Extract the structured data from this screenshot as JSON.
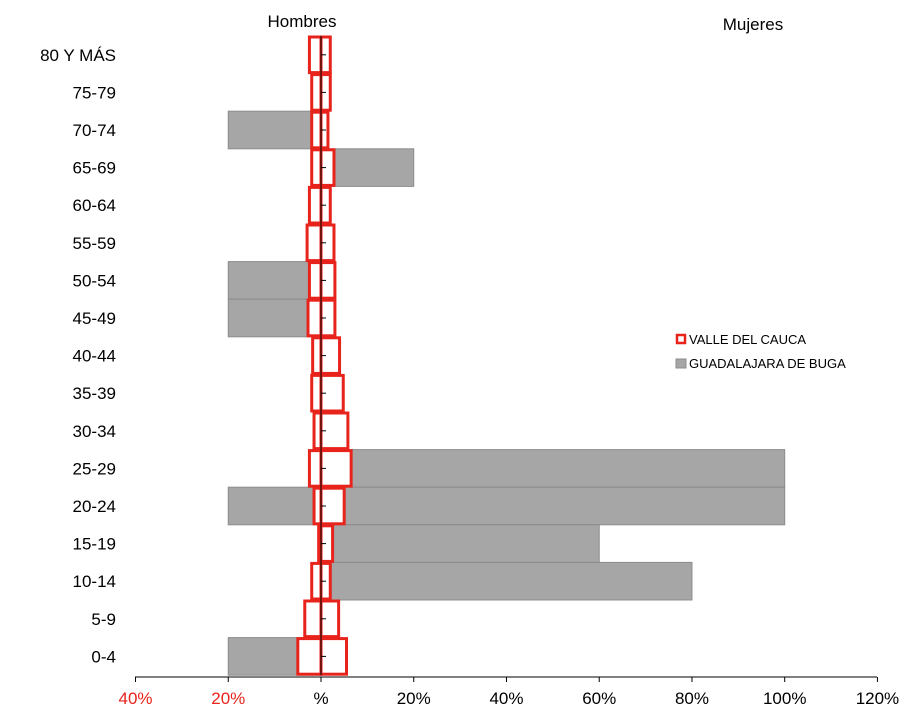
{
  "chart_data": {
    "type": "bar",
    "subtype": "population-pyramid",
    "left_header": "Hombres",
    "right_header": "Mujeres",
    "categories": [
      "80 Y MÁS",
      "75-79",
      "70-74",
      "65-69",
      "60-64",
      "55-59",
      "50-54",
      "45-49",
      "40-44",
      "35-39",
      "30-34",
      "25-29",
      "20-24",
      "15-19",
      "10-14",
      "5-9",
      "0-4"
    ],
    "x_ticks": [
      {
        "value": -40,
        "label": "40%",
        "color": "#e8231c"
      },
      {
        "value": -20,
        "label": "20%",
        "color": "#e8231c"
      },
      {
        "value": 0,
        "label": "%",
        "color": "#000000"
      },
      {
        "value": 20,
        "label": "20%",
        "color": "#000000"
      },
      {
        "value": 40,
        "label": "40%",
        "color": "#000000"
      },
      {
        "value": 60,
        "label": "60%",
        "color": "#000000"
      },
      {
        "value": 80,
        "label": "80%",
        "color": "#000000"
      },
      {
        "value": 100,
        "label": "100%",
        "color": "#000000"
      },
      {
        "value": 120,
        "label": "120%",
        "color": "#000000"
      }
    ],
    "xlim": [
      -40,
      120
    ],
    "series": [
      {
        "name": "VALLE DEL CAUCA",
        "style": "outline",
        "color": "#e8231c",
        "hombres": [
          -2.5,
          -2.0,
          -2.0,
          -2.0,
          -2.5,
          -3.0,
          -2.5,
          -2.8,
          -1.8,
          -2.0,
          -1.5,
          -2.5,
          -1.5,
          -0.5,
          -2.0,
          -3.5,
          -5.0
        ],
        "mujeres": [
          2.0,
          2.0,
          1.5,
          2.8,
          2.0,
          2.8,
          3.0,
          3.0,
          4.0,
          4.8,
          5.8,
          6.5,
          5.0,
          2.5,
          2.0,
          3.8,
          5.5
        ]
      },
      {
        "name": "GUADALAJARA DE BUGA",
        "style": "filled",
        "color": "#a6a6a6",
        "hombres": [
          0,
          0,
          -20,
          0,
          0,
          0,
          -20,
          -20,
          0,
          0,
          0,
          0,
          -20,
          0,
          0,
          0,
          -20
        ],
        "mujeres": [
          0,
          0,
          0,
          20,
          0,
          0,
          0,
          0,
          0,
          0,
          0,
          100,
          100,
          60,
          80,
          0,
          0
        ]
      }
    ],
    "legend_position": "right",
    "grid": false
  }
}
